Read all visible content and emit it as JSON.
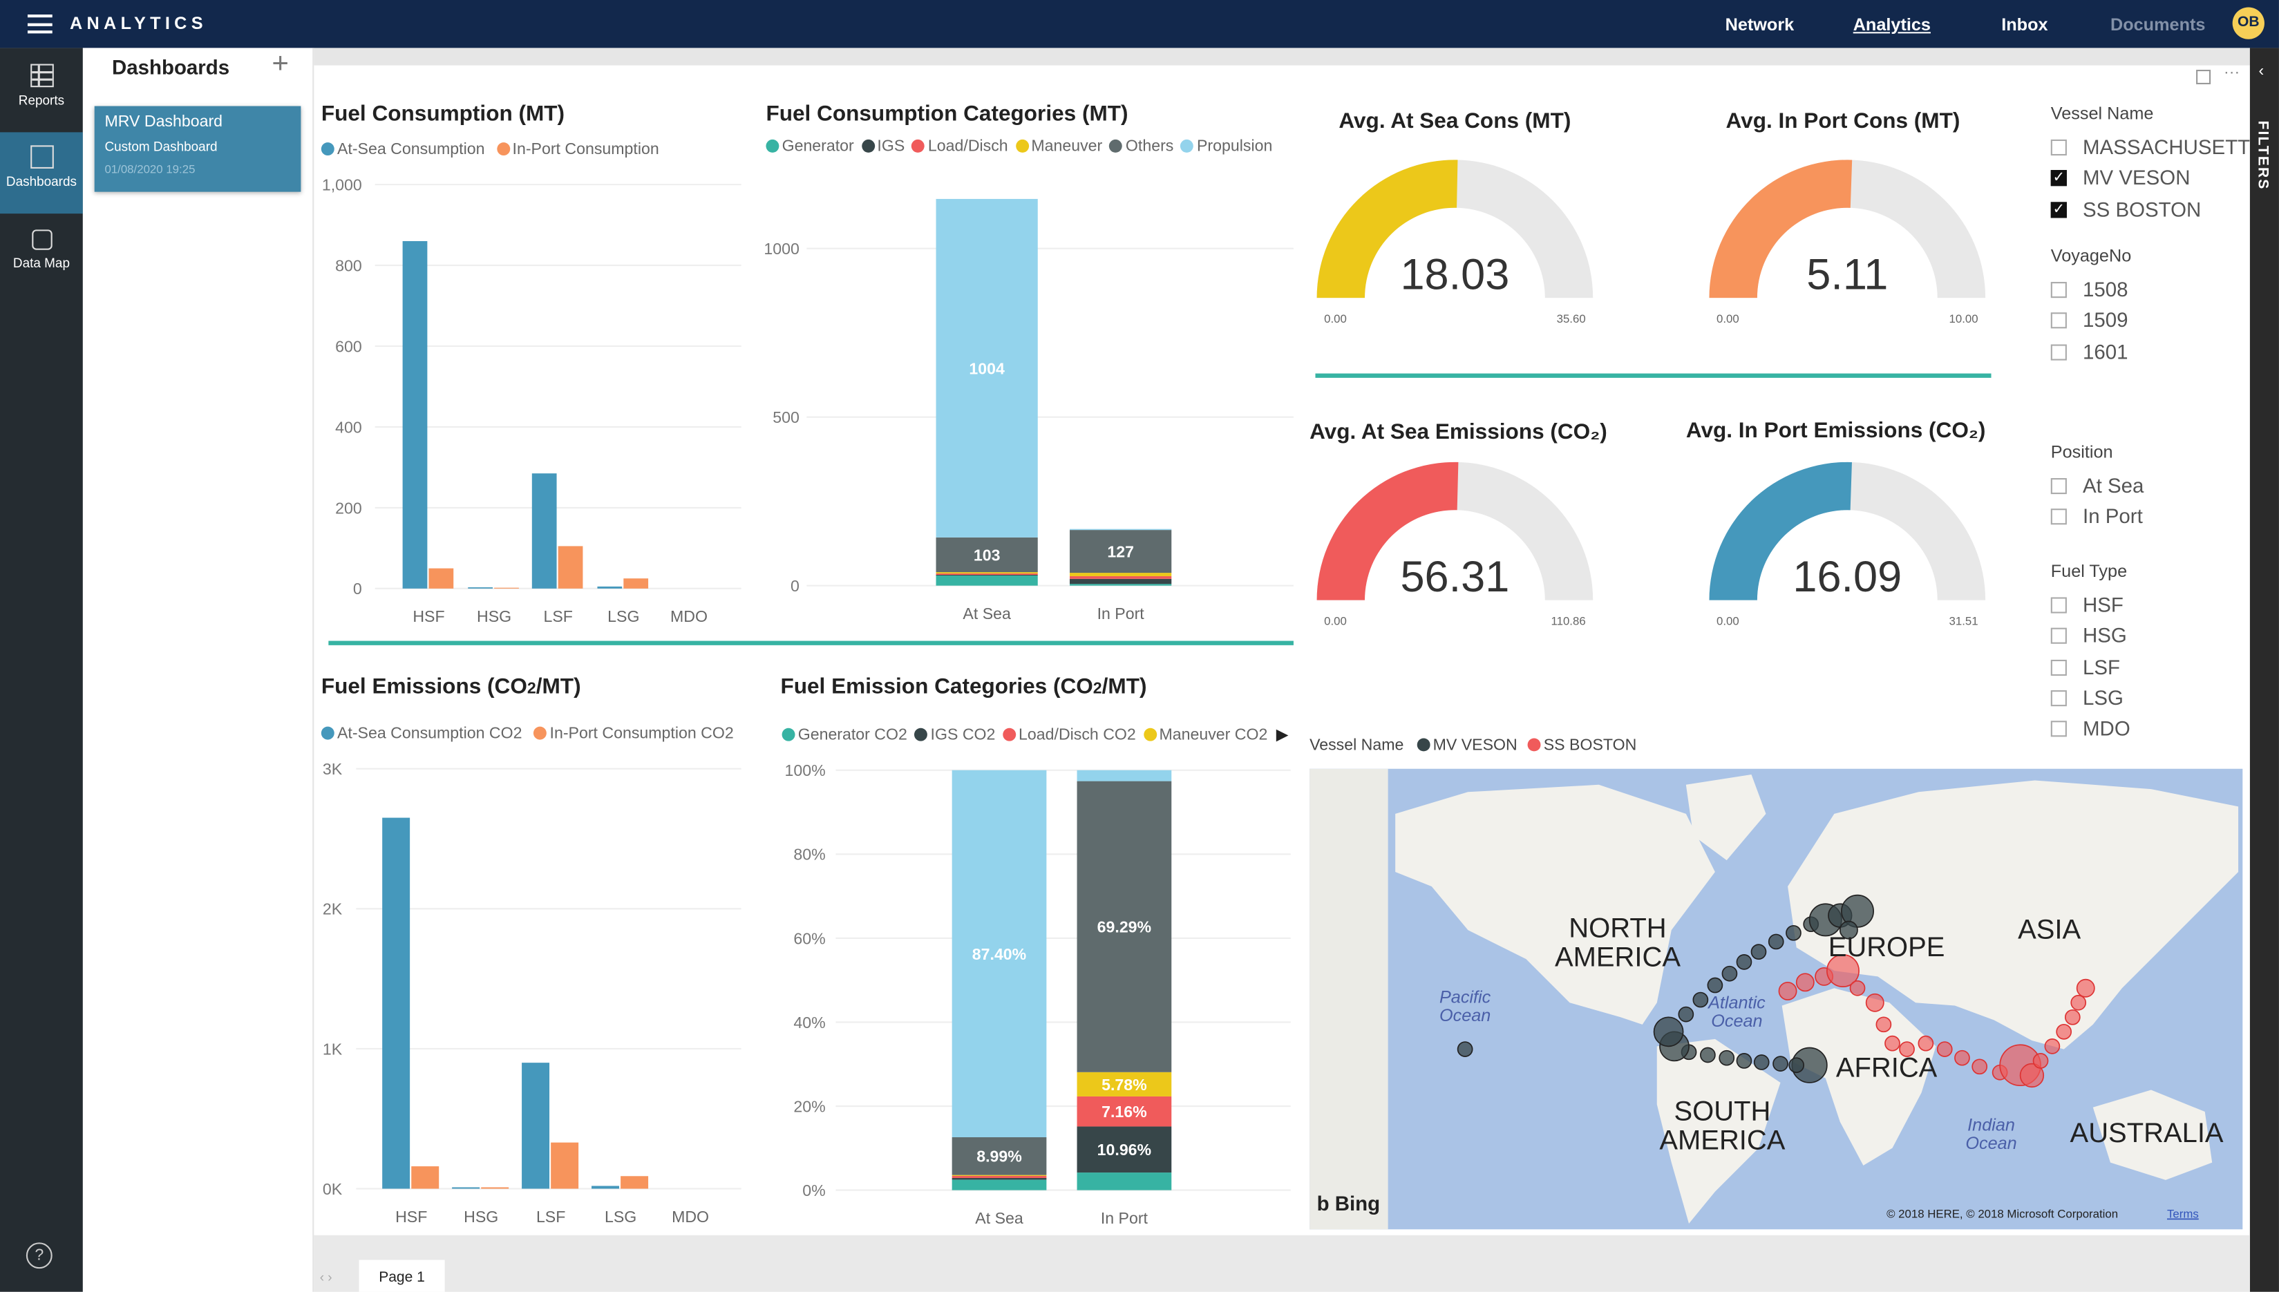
{
  "topbar": {
    "brand": "ANALYTICS",
    "nav": [
      {
        "label": "Network"
      },
      {
        "label": "Analytics",
        "active": true
      },
      {
        "label": "Inbox"
      },
      {
        "label": "Documents",
        "dim": true
      }
    ],
    "avatar": "OB"
  },
  "rail": {
    "items": [
      {
        "label": "Reports",
        "icon": "table-icon"
      },
      {
        "label": "Dashboards",
        "icon": "dashboard-icon",
        "active": true
      },
      {
        "label": "Data Map",
        "icon": "data-map-icon"
      }
    ],
    "help": "?"
  },
  "dashboards": {
    "title": "Dashboards",
    "add": "+",
    "card": {
      "name": "MRV Dashboard",
      "type": "Custom Dashboard",
      "date": "01/08/2020 19:25"
    }
  },
  "colors": {
    "at_sea": "#4598bc",
    "in_port": "#f7945c",
    "Generator": "#37b3a3",
    "IGS": "#374649",
    "Load/Disch": "#f05b5b",
    "Maneuver": "#ecc81a",
    "Others": "#5f6b6d",
    "Propulsion": "#93d3ec",
    "divider": "#37b3a3"
  },
  "chart_data": [
    {
      "id": "fuel_consumption",
      "type": "bar",
      "title": "Fuel Consumption (MT)",
      "categories": [
        "HSF",
        "HSG",
        "LSF",
        "LSG",
        "MDO"
      ],
      "series": [
        {
          "name": "At-Sea Consumption",
          "values": [
            860,
            3,
            285,
            5,
            0
          ]
        },
        {
          "name": "In-Port Consumption",
          "values": [
            50,
            2,
            105,
            25,
            0
          ]
        }
      ],
      "yticks": [
        "1,000",
        "800",
        "600",
        "400",
        "200",
        "0"
      ],
      "ylim": [
        0,
        1000
      ],
      "legend": "top-left",
      "grid": true
    },
    {
      "id": "fuel_consumption_categories",
      "type": "bar",
      "stacked": true,
      "title": "Fuel Consumption Categories (MT)",
      "categories": [
        "At Sea",
        "In Port"
      ],
      "series": [
        {
          "name": "Generator",
          "values": [
            30,
            5
          ]
        },
        {
          "name": "IGS",
          "values": [
            2,
            15
          ]
        },
        {
          "name": "Load/Disch",
          "values": [
            4,
            8
          ]
        },
        {
          "name": "Maneuver",
          "values": [
            4,
            10
          ]
        },
        {
          "name": "Others",
          "values": [
            103,
            127
          ]
        },
        {
          "name": "Propulsion",
          "values": [
            1004,
            3
          ]
        }
      ],
      "data_labels": [
        {
          "category": "At Sea",
          "series": "Propulsion",
          "text": "1004"
        },
        {
          "category": "At Sea",
          "series": "Others",
          "text": "103"
        },
        {
          "category": "In Port",
          "series": "Others",
          "text": "127"
        }
      ],
      "yticks": [
        "1000",
        "500",
        "0"
      ],
      "ylim": [
        0,
        1150
      ],
      "legend": "top-left",
      "grid": true
    },
    {
      "id": "fuel_emissions",
      "type": "bar",
      "title": "Fuel Emissions (CO2/MT)",
      "categories": [
        "HSF",
        "HSG",
        "LSF",
        "LSG",
        "MDO"
      ],
      "series": [
        {
          "name": "At-Sea Consumption CO2",
          "values": [
            2650,
            10,
            900,
            20,
            0
          ]
        },
        {
          "name": "In-Port Consumption CO2",
          "values": [
            160,
            10,
            330,
            90,
            0
          ]
        }
      ],
      "yticks": [
        "3K",
        "2K",
        "1K",
        "0K"
      ],
      "ylim": [
        0,
        3000
      ],
      "legend": "top-left",
      "grid": true
    },
    {
      "id": "fuel_emission_categories",
      "type": "bar",
      "stacked": "percent",
      "title": "Fuel Emission Categories (CO2/MT)",
      "categories": [
        "At Sea",
        "In Port"
      ],
      "series": [
        {
          "name": "Generator CO2",
          "values": [
            2.5,
            4.2
          ]
        },
        {
          "name": "IGS CO2",
          "values": [
            0.4,
            10.96
          ]
        },
        {
          "name": "Load/Disch CO2",
          "values": [
            0.5,
            7.16
          ]
        },
        {
          "name": "Maneuver CO2",
          "values": [
            0.21,
            5.78
          ]
        },
        {
          "name": "Others CO2",
          "values": [
            8.99,
            69.29
          ]
        },
        {
          "name": "Propulsion CO2",
          "values": [
            87.4,
            2.61
          ]
        }
      ],
      "legend_visible": [
        "Generator CO2",
        "IGS CO2",
        "Load/Disch CO2",
        "Maneuver CO2"
      ],
      "data_labels": [
        {
          "category": "At Sea",
          "series": "Propulsion CO2",
          "text": "87.40%"
        },
        {
          "category": "At Sea",
          "series": "Others CO2",
          "text": "8.99%"
        },
        {
          "category": "In Port",
          "series": "Others CO2",
          "text": "69.29%"
        },
        {
          "category": "In Port",
          "series": "Maneuver CO2",
          "text": "5.78%"
        },
        {
          "category": "In Port",
          "series": "Load/Disch CO2",
          "text": "7.16%"
        },
        {
          "category": "In Port",
          "series": "IGS CO2",
          "text": "10.96%"
        }
      ],
      "yticks": [
        "100%",
        "80%",
        "60%",
        "40%",
        "20%",
        "0%"
      ],
      "ylim": [
        0,
        100
      ],
      "legend": "top-left",
      "grid": true
    }
  ],
  "gauges": [
    {
      "title": "Avg. At Sea Cons (MT)",
      "value": "18.03",
      "min": "0.00",
      "max": "35.60",
      "color": "#ecc81a"
    },
    {
      "title": "Avg. In Port Cons (MT)",
      "value": "5.11",
      "min": "0.00",
      "max": "10.00",
      "color": "#f7945c"
    },
    {
      "title": "Avg. At Sea Emissions (CO₂)",
      "value": "56.31",
      "min": "0.00",
      "max": "110.86",
      "color": "#f05b5b"
    },
    {
      "title": "Avg. In Port Emissions (CO₂)",
      "value": "16.09",
      "min": "0.00",
      "max": "31.51",
      "color": "#4598bc"
    }
  ],
  "filters": {
    "groups": [
      {
        "label": "Vessel Name",
        "items": [
          {
            "label": "MASSACHUSETTS",
            "checked": false
          },
          {
            "label": "MV VESON",
            "checked": true
          },
          {
            "label": "SS BOSTON",
            "checked": true
          }
        ]
      },
      {
        "label": "VoyageNo",
        "items": [
          {
            "label": "1508",
            "checked": false
          },
          {
            "label": "1509",
            "checked": false
          },
          {
            "label": "1601",
            "checked": false
          }
        ]
      },
      {
        "label": "Position",
        "items": [
          {
            "label": "At Sea",
            "checked": false
          },
          {
            "label": "In Port",
            "checked": false
          }
        ]
      },
      {
        "label": "Fuel Type",
        "items": [
          {
            "label": "HSF",
            "checked": false
          },
          {
            "label": "HSG",
            "checked": false
          },
          {
            "label": "LSF",
            "checked": false
          },
          {
            "label": "LSG",
            "checked": false
          },
          {
            "label": "MDO",
            "checked": false
          }
        ]
      }
    ],
    "side_label": "FILTERS"
  },
  "map": {
    "legend_title": "Vessel Name",
    "series": [
      {
        "name": "MV VESON",
        "color": "#374649"
      },
      {
        "name": "SS BOSTON",
        "color": "#f05b5b"
      }
    ],
    "labels": {
      "na": "NORTH AMERICA",
      "eu": "EUROPE",
      "asia": "ASIA",
      "africa": "AFRICA",
      "sa": "SOUTH AMERICA",
      "au": "AUSTRALIA",
      "pacific": "Pacific Ocean",
      "atlantic": "Atlantic Ocean",
      "indian": "Indian Ocean"
    },
    "provider": "Bing",
    "copyright": "© 2018 HERE, © 2018 Microsoft Corporation",
    "terms": "Terms"
  },
  "footer": {
    "page": "Page 1"
  }
}
